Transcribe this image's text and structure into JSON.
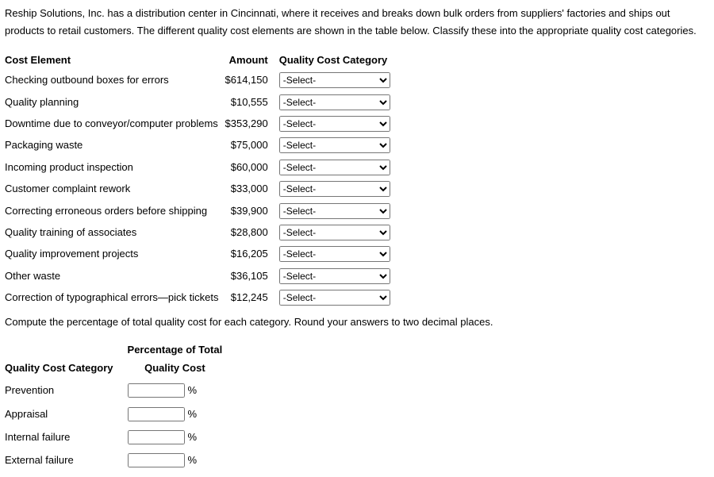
{
  "intro_text": "Reship Solutions, Inc. has a distribution center in Cincinnati, where it receives and breaks down bulk orders from suppliers' factories and ships out products to retail customers. The different quality cost elements are shown in the table below. Classify these into the appropriate quality cost categories.",
  "cost_table": {
    "headers": {
      "element": "Cost Element",
      "amount": "Amount",
      "category": "Quality Cost Category"
    },
    "select_placeholder": "-Select-",
    "rows": [
      {
        "element": "Checking outbound boxes for errors",
        "amount": "$614,150"
      },
      {
        "element": "Quality planning",
        "amount": "$10,555"
      },
      {
        "element": "Downtime due to conveyor/computer problems",
        "amount": "$353,290"
      },
      {
        "element": "Packaging waste",
        "amount": "$75,000"
      },
      {
        "element": "Incoming product inspection",
        "amount": "$60,000"
      },
      {
        "element": "Customer complaint rework",
        "amount": "$33,000"
      },
      {
        "element": "Correcting erroneous orders before shipping",
        "amount": "$39,900"
      },
      {
        "element": "Quality training of associates",
        "amount": "$28,800"
      },
      {
        "element": "Quality improvement projects",
        "amount": "$16,205"
      },
      {
        "element": "Other waste",
        "amount": "$36,105"
      },
      {
        "element": "Correction of typographical errors—pick tickets",
        "amount": "$12,245"
      }
    ]
  },
  "compute_text": "Compute the percentage of total quality cost for each category. Round your answers to two decimal places.",
  "pct_table": {
    "headers": {
      "category": "Quality Cost Category",
      "pct_line1": "Percentage of Total",
      "pct_line2": "Quality Cost"
    },
    "percent_symbol": "%",
    "rows": [
      {
        "category": "Prevention",
        "value": ""
      },
      {
        "category": "Appraisal",
        "value": ""
      },
      {
        "category": "Internal failure",
        "value": ""
      },
      {
        "category": "External failure",
        "value": ""
      }
    ]
  }
}
